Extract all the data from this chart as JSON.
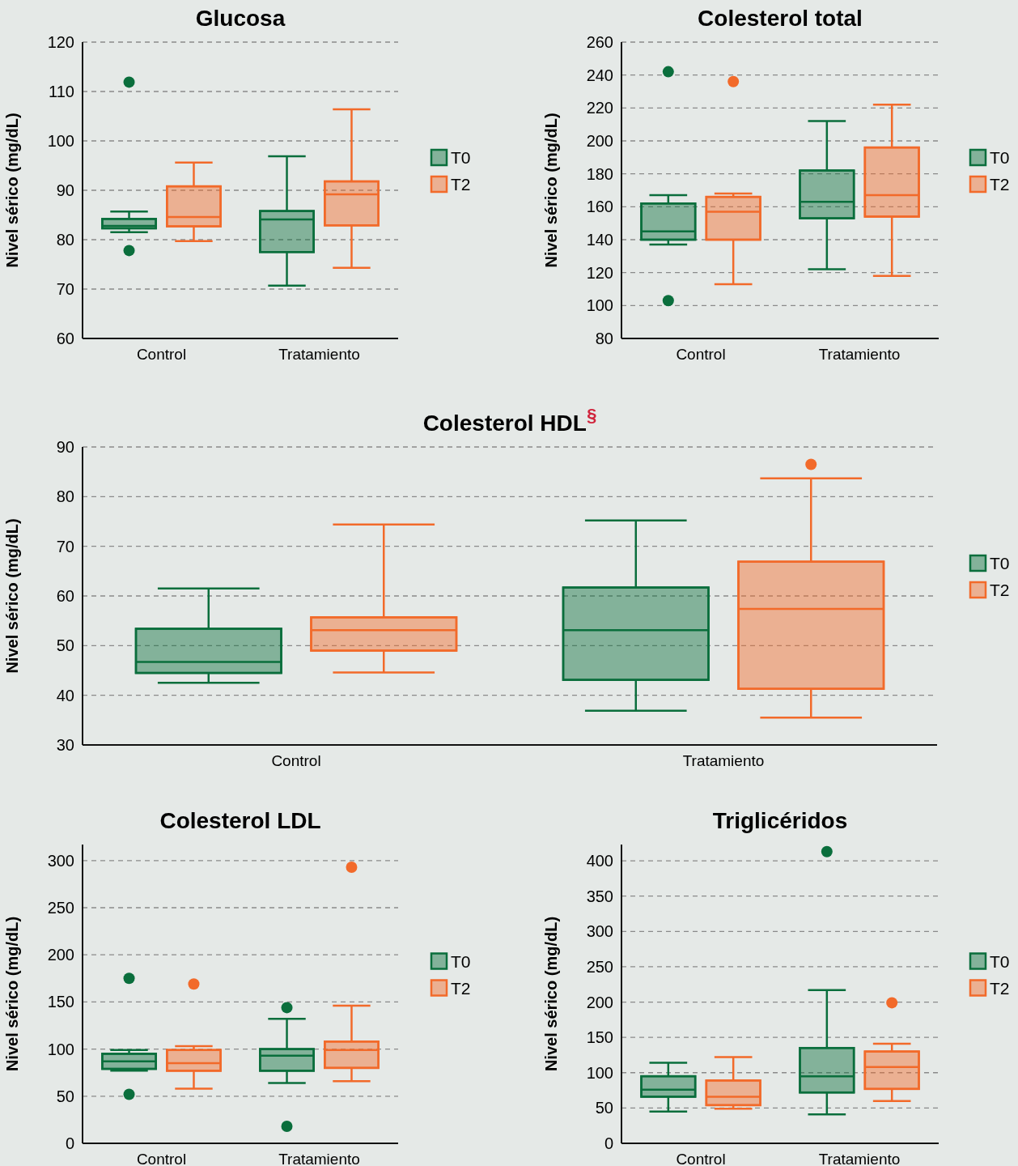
{
  "chart_data": [
    {
      "type": "box",
      "title": "Glucosa",
      "ylabel": "Nivel sérico (mg/dL)",
      "categories": [
        "Control",
        "Tratamiento"
      ],
      "ylim": [
        60,
        120
      ],
      "yticks": [
        60,
        70,
        80,
        90,
        100,
        110,
        120
      ],
      "grid": "y",
      "legend": "right",
      "series": [
        {
          "name": "T0",
          "color": "#0a6e3c",
          "boxes": [
            {
              "low": 81.5,
              "q1": 82.3,
              "median": 82.8,
              "q3": 84.2,
              "high": 85.7,
              "outliers": [
                111.9,
                77.8
              ]
            },
            {
              "low": 70.7,
              "q1": 77.5,
              "median": 84.1,
              "q3": 85.8,
              "high": 96.9
            }
          ]
        },
        {
          "name": "T2",
          "color": "#f26a2a",
          "boxes": [
            {
              "low": 79.7,
              "q1": 82.7,
              "median": 84.6,
              "q3": 90.8,
              "high": 95.6
            },
            {
              "low": 74.3,
              "q1": 82.9,
              "median": 89.2,
              "q3": 91.8,
              "high": 106.4
            }
          ]
        }
      ]
    },
    {
      "type": "box",
      "title": "Colesterol total",
      "ylabel": "Nivel sérico (mg/dL)",
      "categories": [
        "Control",
        "Tratamiento"
      ],
      "ylim": [
        80,
        260
      ],
      "yticks": [
        80,
        100,
        120,
        140,
        160,
        180,
        200,
        220,
        240,
        260
      ],
      "grid": "y",
      "legend": "right",
      "series": [
        {
          "name": "T0",
          "color": "#0a6e3c",
          "boxes": [
            {
              "low": 137,
              "q1": 140,
              "median": 145,
              "q3": 162,
              "high": 167,
              "outliers": [
                242,
                103
              ]
            },
            {
              "low": 122,
              "q1": 153,
              "median": 163,
              "q3": 182,
              "high": 212
            }
          ]
        },
        {
          "name": "T2",
          "color": "#f26a2a",
          "boxes": [
            {
              "low": 113,
              "q1": 140,
              "median": 157,
              "q3": 166,
              "high": 168,
              "outliers": [
                236
              ]
            },
            {
              "low": 118,
              "q1": 154,
              "median": 167,
              "q3": 196,
              "high": 222
            }
          ]
        }
      ]
    },
    {
      "type": "box",
      "title": "Colesterol HDL$^{§}$",
      "ylabel": "Nivel sérico (mg/dL)",
      "categories": [
        "Control",
        "Tratamiento"
      ],
      "ylim": [
        30,
        90
      ],
      "yticks": [
        30,
        40,
        50,
        60,
        70,
        80,
        90
      ],
      "grid": "y",
      "legend": "right",
      "series": [
        {
          "name": "T0",
          "color": "#0a6e3c",
          "boxes": [
            {
              "low": 42.5,
              "q1": 44.5,
              "median": 46.7,
              "q3": 53.4,
              "high": 61.5
            },
            {
              "low": 36.9,
              "q1": 43.1,
              "median": 53.1,
              "q3": 61.7,
              "high": 75.2
            }
          ]
        },
        {
          "name": "T2",
          "color": "#f26a2a",
          "boxes": [
            {
              "low": 44.6,
              "q1": 49,
              "median": 53.1,
              "q3": 55.7,
              "high": 74.4
            },
            {
              "low": 35.5,
              "q1": 41.3,
              "median": 57.4,
              "q3": 66.9,
              "high": 83.7,
              "outliers": [
                86.5
              ]
            }
          ]
        }
      ]
    },
    {
      "type": "box",
      "title": "Colesterol LDL",
      "ylabel": "Nivel sérico (mg/dL)",
      "categories": [
        "Control",
        "Tratamiento"
      ],
      "ylim": [
        0,
        317
      ],
      "yticks": [
        0,
        50,
        100,
        150,
        200,
        250,
        300
      ],
      "grid": "y",
      "legend": "right",
      "series": [
        {
          "name": "T0",
          "color": "#0a6e3c",
          "boxes": [
            {
              "low": 77,
              "q1": 79,
              "median": 87,
              "q3": 95,
              "high": 99,
              "outliers": [
                175,
                52
              ]
            },
            {
              "low": 64,
              "q1": 77,
              "median": 93,
              "q3": 100,
              "high": 132,
              "outliers": [
                144,
                18
              ]
            }
          ]
        },
        {
          "name": "T2",
          "color": "#f26a2a",
          "boxes": [
            {
              "low": 58,
              "q1": 77,
              "median": 85,
              "q3": 99,
              "high": 103,
              "outliers": [
                169
              ]
            },
            {
              "low": 66,
              "q1": 80,
              "median": 99,
              "q3": 108,
              "high": 146,
              "outliers": [
                293
              ]
            }
          ]
        }
      ]
    },
    {
      "type": "box",
      "title": "Triglicéridos",
      "ylabel": "Nivel sérico (mg/dL)",
      "categories": [
        "Control",
        "Tratamiento"
      ],
      "ylim": [
        0,
        423
      ],
      "yticks": [
        0,
        50,
        100,
        150,
        200,
        250,
        300,
        350,
        400
      ],
      "grid": "y",
      "legend": "right",
      "series": [
        {
          "name": "T0",
          "color": "#0a6e3c",
          "boxes": [
            {
              "low": 45,
              "q1": 66,
              "median": 76,
              "q3": 95,
              "high": 114
            },
            {
              "low": 41,
              "q1": 72,
              "median": 95,
              "q3": 135,
              "high": 217,
              "outliers": [
                413
              ]
            }
          ]
        },
        {
          "name": "T2",
          "color": "#f26a2a",
          "boxes": [
            {
              "low": 49,
              "q1": 54,
              "median": 66,
              "q3": 89,
              "high": 122
            },
            {
              "low": 60,
              "q1": 77,
              "median": 108,
              "q3": 130,
              "high": 141,
              "outliers": [
                199
              ]
            }
          ]
        }
      ]
    }
  ]
}
